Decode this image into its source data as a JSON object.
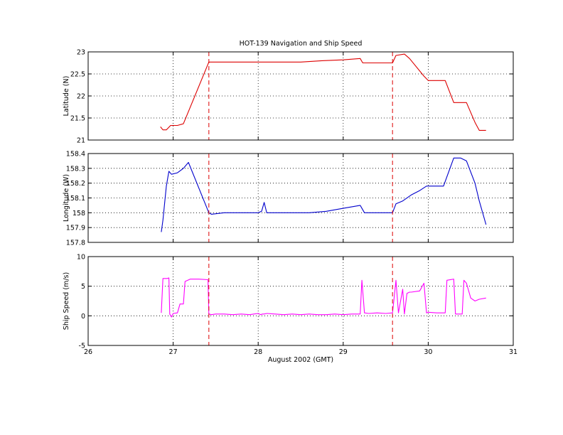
{
  "figure": {
    "title": "HOT-139 Navigation and Ship Speed",
    "xlabel": "August 2002 (GMT)"
  },
  "chart_data": [
    {
      "type": "line",
      "ylabel": "Latitude (N)",
      "xlim": [
        26,
        31
      ],
      "ylim": [
        21,
        23
      ],
      "xticks": [
        26,
        27,
        28,
        29,
        30,
        31
      ],
      "yticks": [
        21,
        21.5,
        22,
        22.5,
        23
      ],
      "grid": true,
      "color": "#dd0000",
      "vlines": [
        27.42,
        29.58
      ],
      "vline_color": "#dd0000",
      "series": [
        {
          "x": [
            26.85,
            26.88,
            26.92,
            26.97,
            27.05,
            27.12,
            27.17,
            27.42,
            28.0,
            28.5,
            28.75,
            29.0,
            29.2,
            29.23,
            29.58,
            29.62,
            29.72,
            29.78,
            29.95,
            30.0,
            30.2,
            30.3,
            30.45,
            30.55,
            30.6,
            30.68
          ],
          "y": [
            21.3,
            21.23,
            21.23,
            21.33,
            21.33,
            21.37,
            21.6,
            22.77,
            22.77,
            22.77,
            22.8,
            22.82,
            22.85,
            22.75,
            22.75,
            22.92,
            22.95,
            22.85,
            22.45,
            22.35,
            22.35,
            21.85,
            21.85,
            21.4,
            21.22,
            21.22
          ]
        }
      ]
    },
    {
      "type": "line",
      "ylabel": "Longitude (W)",
      "xlim": [
        26,
        31
      ],
      "ylim": [
        157.8,
        158.4
      ],
      "xticks": [
        26,
        27,
        28,
        29,
        30,
        31
      ],
      "yticks": [
        157.8,
        157.9,
        158,
        158.1,
        158.2,
        158.3,
        158.4
      ],
      "grid": true,
      "color": "#0000cc",
      "vlines": [
        27.42,
        29.58
      ],
      "vline_color": "#dd0000",
      "series": [
        {
          "x": [
            26.86,
            26.88,
            26.92,
            26.95,
            26.98,
            27.05,
            27.12,
            27.18,
            27.42,
            27.45,
            27.6,
            27.8,
            28.0,
            28.04,
            28.07,
            28.1,
            28.3,
            28.6,
            28.8,
            29.0,
            29.2,
            29.25,
            29.58,
            29.62,
            29.7,
            29.8,
            29.9,
            29.98,
            30.05,
            30.18,
            30.3,
            30.38,
            30.45,
            30.55,
            30.6,
            30.68
          ],
          "y": [
            157.87,
            157.95,
            158.18,
            158.28,
            158.26,
            158.27,
            158.3,
            158.34,
            158.0,
            157.99,
            158.0,
            158.0,
            158.0,
            158.01,
            158.07,
            158.0,
            158.0,
            158.0,
            158.01,
            158.03,
            158.05,
            158.0,
            158.0,
            158.06,
            158.08,
            158.12,
            158.15,
            158.18,
            158.18,
            158.18,
            158.37,
            158.37,
            158.35,
            158.2,
            158.08,
            157.92
          ]
        }
      ]
    },
    {
      "type": "line",
      "ylabel": "Ship Speed (m/s)",
      "xlim": [
        26,
        31
      ],
      "ylim": [
        -5,
        10
      ],
      "xticks": [
        26,
        27,
        28,
        29,
        30,
        31
      ],
      "yticks": [
        -5,
        0,
        5,
        10
      ],
      "grid": true,
      "color": "#ff00ff",
      "vlines": [
        27.42,
        29.58
      ],
      "vline_color": "#dd0000",
      "series": [
        {
          "x": [
            26.86,
            26.88,
            26.89,
            26.93,
            26.95,
            26.96,
            26.98,
            27.0,
            27.05,
            27.08,
            27.12,
            27.14,
            27.2,
            27.3,
            27.41,
            27.42,
            27.45,
            27.5,
            27.6,
            27.7,
            27.8,
            27.9,
            27.95,
            28.0,
            28.03,
            28.05,
            28.07,
            28.1,
            28.2,
            28.3,
            28.4,
            28.5,
            28.6,
            28.7,
            28.8,
            28.9,
            29.0,
            29.1,
            29.2,
            29.22,
            29.25,
            29.3,
            29.4,
            29.5,
            29.58,
            29.62,
            29.65,
            29.7,
            29.72,
            29.75,
            29.78,
            29.8,
            29.9,
            29.95,
            29.98,
            30.0,
            30.1,
            30.2,
            30.22,
            30.3,
            30.32,
            30.4,
            30.42,
            30.45,
            30.5,
            30.55,
            30.6,
            30.68
          ],
          "y": [
            0.5,
            6.3,
            6.3,
            6.3,
            6.4,
            0.3,
            -0.2,
            0.4,
            0.5,
            2.0,
            2.0,
            5.8,
            6.2,
            6.2,
            6.1,
            0.3,
            0.2,
            0.3,
            0.3,
            0.2,
            0.3,
            0.2,
            0.3,
            0.4,
            0.2,
            0.3,
            0.3,
            0.4,
            0.3,
            0.2,
            0.3,
            0.2,
            0.3,
            0.2,
            0.2,
            0.3,
            0.2,
            0.3,
            0.3,
            6.0,
            0.5,
            0.4,
            0.5,
            0.4,
            0.5,
            6.0,
            0.5,
            4.5,
            0.3,
            3.8,
            4.0,
            4.0,
            4.2,
            5.5,
            0.5,
            0.6,
            0.5,
            0.5,
            6.0,
            6.2,
            0.3,
            0.3,
            6.0,
            5.5,
            3.0,
            2.5,
            2.8,
            3.0
          ]
        }
      ]
    }
  ]
}
